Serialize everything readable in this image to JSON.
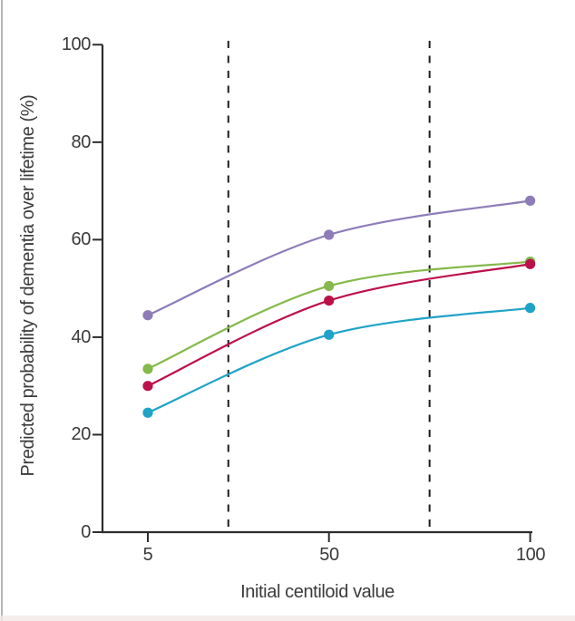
{
  "chart_data": {
    "type": "line",
    "x": [
      5,
      50,
      100
    ],
    "series": [
      {
        "name": "purple",
        "color": "#8e7cb9",
        "values": [
          44.5,
          61,
          68
        ]
      },
      {
        "name": "green",
        "color": "#85b94b",
        "values": [
          33.5,
          50.5,
          55.5
        ]
      },
      {
        "name": "red",
        "color": "#bb1149",
        "values": [
          30,
          47.5,
          55
        ]
      },
      {
        "name": "blue",
        "color": "#1fa3c7",
        "values": [
          24.5,
          40.5,
          46
        ]
      }
    ],
    "xticks": [
      5,
      50,
      100
    ],
    "yticks": [
      0,
      20,
      40,
      60,
      80,
      100
    ],
    "xlabel": "Initial centiloid value",
    "ylabel": "Predicted probability of dementia over lifetime (%)",
    "xlim": [
      -6,
      100.5
    ],
    "ylim": [
      0,
      100
    ],
    "reference_lines_x": [
      25,
      75
    ],
    "grid": false,
    "legend": "none",
    "colors": {
      "axis": "#2d2d2d",
      "tick_text": "#3a3a3a",
      "reference_line": "#1c1c1c"
    },
    "marker": "circle",
    "marker_radius": 5.6
  }
}
